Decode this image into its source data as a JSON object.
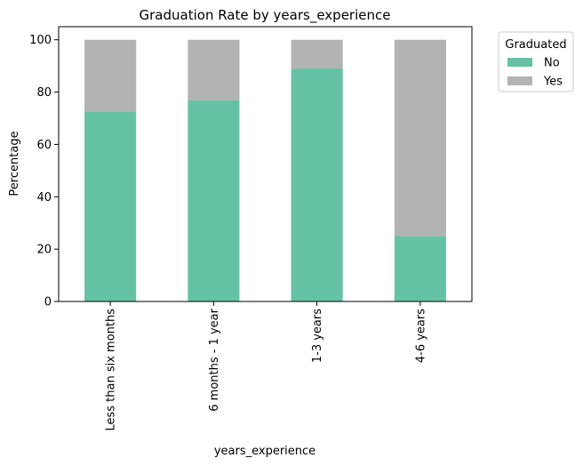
{
  "chart_data": {
    "type": "bar",
    "stacked": true,
    "title": "Graduation Rate by years_experience",
    "xlabel": "years_experience",
    "ylabel": "Percentage",
    "ylim": [
      0,
      105
    ],
    "yticks": [
      "0",
      "20",
      "40",
      "60",
      "80",
      "100"
    ],
    "categories": [
      "Less than six months",
      "6 months - 1 year",
      "1-3 years",
      "4-6 years"
    ],
    "series": [
      {
        "name": "No",
        "color": "#66c2a5",
        "values": [
          72.5,
          77,
          89,
          25
        ]
      },
      {
        "name": "Yes",
        "color": "#b3b3b3",
        "values": [
          27.5,
          23,
          11,
          75
        ]
      }
    ],
    "legend": {
      "title": "Graduated",
      "placement": "outside-right"
    },
    "grid": false
  }
}
